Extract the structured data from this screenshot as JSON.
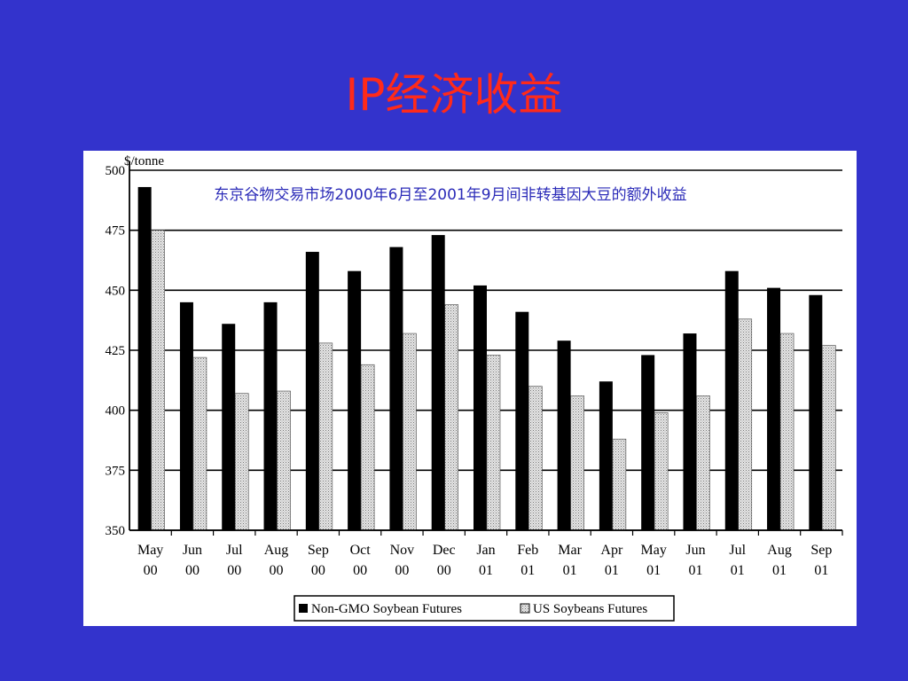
{
  "slide": {
    "title": "IP经济收益"
  },
  "chart_data": {
    "type": "bar",
    "title": "东京谷物交易市场2000年6月至2001年9月间非转基因大豆的额外收益",
    "ylabel": "$/tonne",
    "xlabel": "",
    "ylim": [
      350,
      500
    ],
    "yticks": [
      350,
      375,
      400,
      425,
      450,
      475,
      500
    ],
    "grid": true,
    "legend_position": "bottom",
    "categories": [
      [
        "May",
        "00"
      ],
      [
        "Jun",
        "00"
      ],
      [
        "Jul",
        "00"
      ],
      [
        "Aug",
        "00"
      ],
      [
        "Sep",
        "00"
      ],
      [
        "Oct",
        "00"
      ],
      [
        "Nov",
        "00"
      ],
      [
        "Dec",
        "00"
      ],
      [
        "Jan",
        "01"
      ],
      [
        "Feb",
        "01"
      ],
      [
        "Mar",
        "01"
      ],
      [
        "Apr",
        "01"
      ],
      [
        "May",
        "01"
      ],
      [
        "Jun",
        "01"
      ],
      [
        "Jul",
        "01"
      ],
      [
        "Aug",
        "01"
      ],
      [
        "Sep",
        "01"
      ]
    ],
    "series": [
      {
        "name": "Non-GMO Soybean Futures",
        "color": "#000000",
        "values": [
          493,
          445,
          436,
          445,
          466,
          458,
          468,
          473,
          452,
          441,
          429,
          412,
          423,
          432,
          458,
          451,
          448
        ]
      },
      {
        "name": "US Soybeans Futures",
        "color": "#d4d4d4",
        "values": [
          475,
          422,
          407,
          408,
          428,
          419,
          432,
          444,
          423,
          410,
          406,
          388,
          399,
          406,
          438,
          432,
          427
        ]
      }
    ]
  }
}
